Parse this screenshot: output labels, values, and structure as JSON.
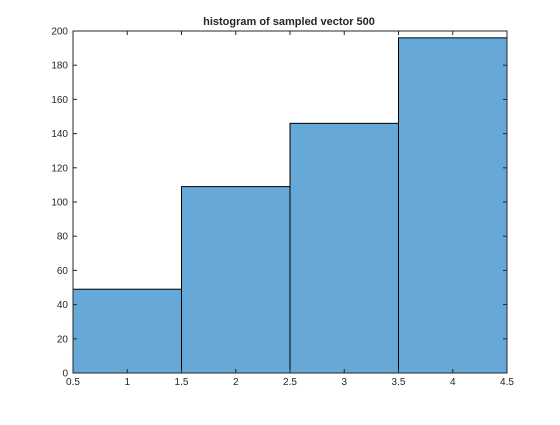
{
  "chart_data": {
    "type": "bar",
    "title": "histogram of sampled vector 500",
    "xlabel": "",
    "ylabel": "",
    "bins": [
      {
        "x0": 0.5,
        "x1": 1.5,
        "value": 49
      },
      {
        "x0": 1.5,
        "x1": 2.5,
        "value": 109
      },
      {
        "x0": 2.5,
        "x1": 3.5,
        "value": 146
      },
      {
        "x0": 3.5,
        "x1": 4.5,
        "value": 196
      }
    ],
    "xlim": [
      0.5,
      4.5
    ],
    "ylim": [
      0,
      200
    ],
    "xticks": [
      "0.5",
      "1",
      "1.5",
      "2",
      "2.5",
      "3",
      "3.5",
      "4",
      "4.5"
    ],
    "yticks": [
      "0",
      "20",
      "40",
      "60",
      "80",
      "100",
      "120",
      "140",
      "160",
      "180",
      "200"
    ],
    "bar_color": "#66a9d8",
    "edge_color": "#000000",
    "grid": false,
    "legend": "none"
  }
}
